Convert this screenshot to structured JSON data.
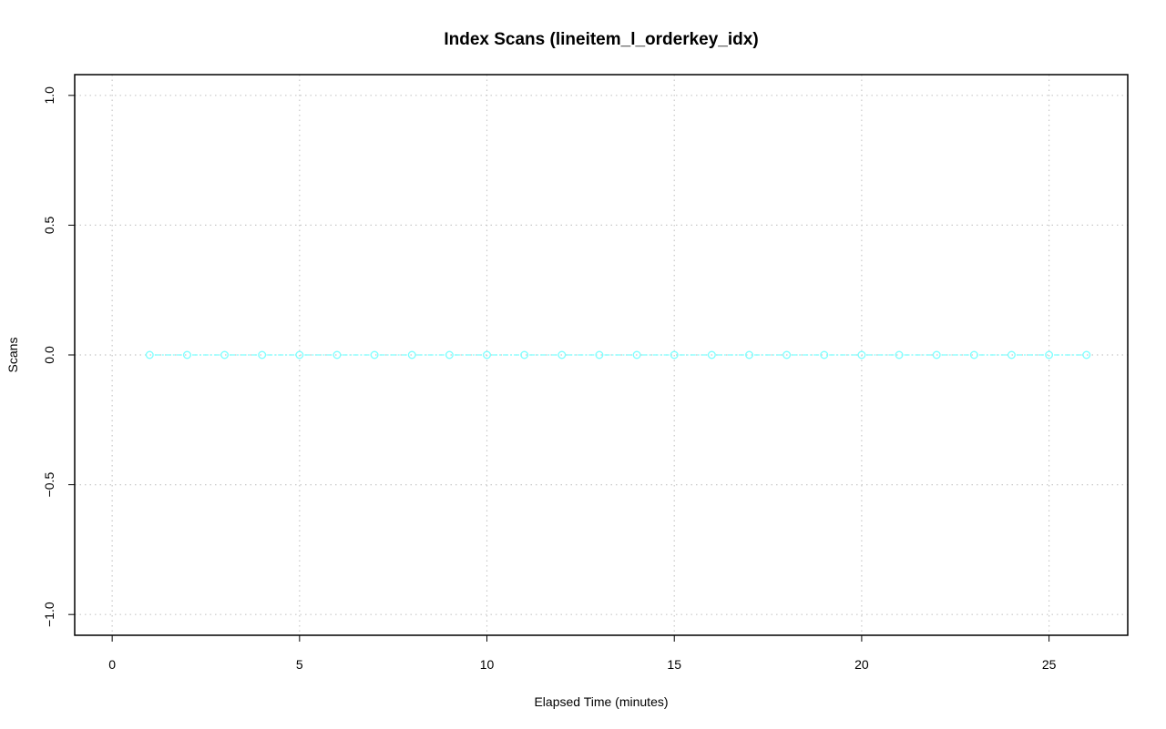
{
  "chart_data": {
    "type": "line",
    "title": "Index Scans (lineitem_l_orderkey_idx)",
    "xlabel": "Elapsed Time (minutes)",
    "ylabel": "Scans",
    "xlim": [
      -1,
      27.1
    ],
    "ylim": [
      -1.08,
      1.08
    ],
    "x_ticks": [
      0,
      5,
      10,
      15,
      20,
      25
    ],
    "x_tick_labels": [
      "0",
      "5",
      "10",
      "15",
      "20",
      "25"
    ],
    "y_ticks": [
      -1.0,
      -0.5,
      0.0,
      0.5,
      1.0
    ],
    "y_tick_labels": [
      "−1.0",
      "−0.5",
      "0.0",
      "0.5",
      "1.0"
    ],
    "grid": true,
    "series": [
      {
        "color": "#7fffff",
        "marker": "open-circle",
        "line": "dashed",
        "x": [
          1,
          2,
          3,
          4,
          5,
          6,
          7,
          8,
          9,
          10,
          11,
          12,
          13,
          14,
          15,
          16,
          17,
          18,
          19,
          20,
          21,
          22,
          23,
          24,
          25,
          26
        ],
        "y": [
          0,
          0,
          0,
          0,
          0,
          0,
          0,
          0,
          0,
          0,
          0,
          0,
          0,
          0,
          0,
          0,
          0,
          0,
          0,
          0,
          0,
          0,
          0,
          0,
          0,
          0
        ]
      }
    ]
  }
}
